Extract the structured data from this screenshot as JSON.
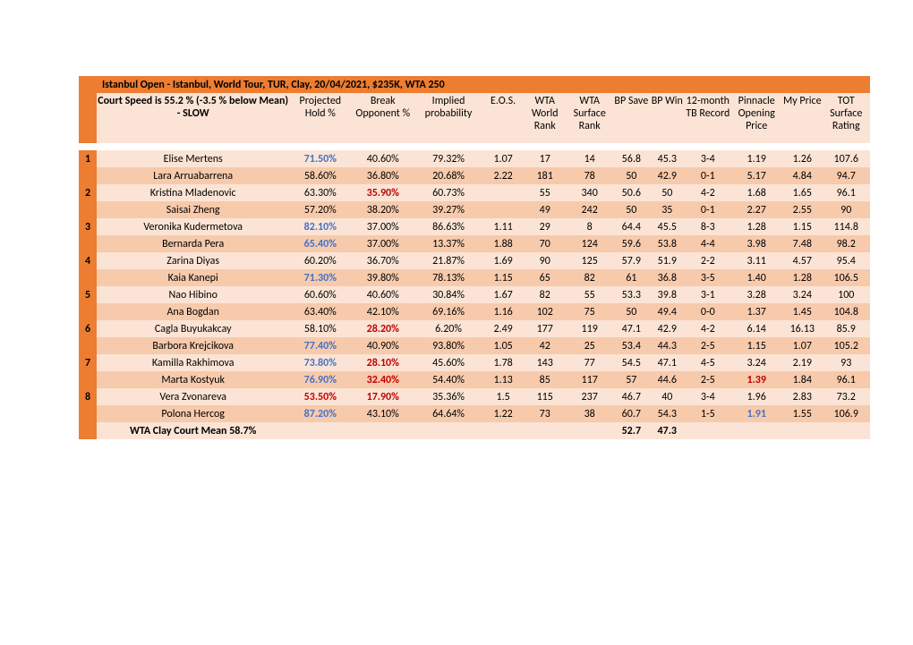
{
  "title": "Istanbul Open - Istanbul, World Tour, TUR, Clay, 20/04/2021, $235K, WTA 250",
  "header": {
    "name": "Court Speed is 55.2 % (-3.5 % below Mean) - SLOW",
    "hold": "Projected Hold %",
    "break": "Break Opponent %",
    "implied": "Implied probability",
    "eos": "E.O.S.",
    "world": "WTA World Rank",
    "surface": "WTA Surface Rank",
    "bpsave": "BP Save",
    "bpwin": "BP Win",
    "tb": "12-month TB Record",
    "pop": "Pinnacle Opening Price",
    "my": "My Price",
    "tot": "TOT Surface Rating"
  },
  "colors": {
    "dark": "#ed7d31",
    "light1": "#fbe4d5",
    "light2": "#f7caac",
    "blue": "#4472c4",
    "red": "#c00000"
  },
  "rows": [
    {
      "num": "1",
      "name": "Elise Mertens",
      "hold": "71.50%",
      "hold_c": "blue",
      "brk": "40.60%",
      "brk_c": "",
      "imp": "79.32%",
      "eos": "1.07",
      "wr": "17",
      "sr": "14",
      "bps": "56.8",
      "bpw": "45.3",
      "tb": "3-4",
      "pop": "1.19",
      "pop_c": "",
      "my": "1.26",
      "tot": "107.6",
      "shade": "a"
    },
    {
      "num": "",
      "name": "Lara Arruabarrena",
      "hold": "58.60%",
      "hold_c": "",
      "brk": "36.80%",
      "brk_c": "",
      "imp": "20.68%",
      "eos": "2.22",
      "wr": "181",
      "sr": "78",
      "bps": "50",
      "bpw": "42.9",
      "tb": "0-1",
      "pop": "5.17",
      "pop_c": "",
      "my": "4.84",
      "tot": "94.7",
      "shade": "b"
    },
    {
      "num": "2",
      "name": "Kristina Mladenovic",
      "hold": "63.30%",
      "hold_c": "",
      "brk": "35.90%",
      "brk_c": "red",
      "imp": "60.73%",
      "eos": "",
      "wr": "55",
      "sr": "340",
      "bps": "50.6",
      "bpw": "50",
      "tb": "4-2",
      "pop": "1.68",
      "pop_c": "",
      "my": "1.65",
      "tot": "96.1",
      "shade": "a"
    },
    {
      "num": "",
      "name": "Saisai Zheng",
      "hold": "57.20%",
      "hold_c": "",
      "brk": "38.20%",
      "brk_c": "",
      "imp": "39.27%",
      "eos": "",
      "wr": "49",
      "sr": "242",
      "bps": "50",
      "bpw": "35",
      "tb": "0-1",
      "pop": "2.27",
      "pop_c": "",
      "my": "2.55",
      "tot": "90",
      "shade": "b"
    },
    {
      "num": "3",
      "name": "Veronika Kudermetova",
      "hold": "82.10%",
      "hold_c": "blue",
      "brk": "37.00%",
      "brk_c": "",
      "imp": "86.63%",
      "eos": "1.11",
      "wr": "29",
      "sr": "8",
      "bps": "64.4",
      "bpw": "45.5",
      "tb": "8-3",
      "pop": "1.28",
      "pop_c": "",
      "my": "1.15",
      "tot": "114.8",
      "shade": "a"
    },
    {
      "num": "",
      "name": "Bernarda Pera",
      "hold": "65.40%",
      "hold_c": "blue",
      "brk": "37.00%",
      "brk_c": "",
      "imp": "13.37%",
      "eos": "1.88",
      "wr": "70",
      "sr": "124",
      "bps": "59.6",
      "bpw": "53.8",
      "tb": "4-4",
      "pop": "3.98",
      "pop_c": "",
      "my": "7.48",
      "tot": "98.2",
      "shade": "b"
    },
    {
      "num": "4",
      "name": "Zarina Diyas",
      "hold": "60.20%",
      "hold_c": "",
      "brk": "36.70%",
      "brk_c": "",
      "imp": "21.87%",
      "eos": "1.69",
      "wr": "90",
      "sr": "125",
      "bps": "57.9",
      "bpw": "51.9",
      "tb": "2-2",
      "pop": "3.11",
      "pop_c": "",
      "my": "4.57",
      "tot": "95.4",
      "shade": "a"
    },
    {
      "num": "",
      "name": "Kaia Kanepi",
      "hold": "71.30%",
      "hold_c": "blue",
      "brk": "39.80%",
      "brk_c": "",
      "imp": "78.13%",
      "eos": "1.15",
      "wr": "65",
      "sr": "82",
      "bps": "61",
      "bpw": "36.8",
      "tb": "3-5",
      "pop": "1.40",
      "pop_c": "",
      "my": "1.28",
      "tot": "106.5",
      "shade": "b"
    },
    {
      "num": "5",
      "name": "Nao Hibino",
      "hold": "60.60%",
      "hold_c": "",
      "brk": "40.60%",
      "brk_c": "",
      "imp": "30.84%",
      "eos": "1.67",
      "wr": "82",
      "sr": "55",
      "bps": "53.3",
      "bpw": "39.8",
      "tb": "3-1",
      "pop": "3.28",
      "pop_c": "",
      "my": "3.24",
      "tot": "100",
      "shade": "a"
    },
    {
      "num": "",
      "name": "Ana Bogdan",
      "hold": "63.40%",
      "hold_c": "",
      "brk": "42.10%",
      "brk_c": "",
      "imp": "69.16%",
      "eos": "1.16",
      "wr": "102",
      "sr": "75",
      "bps": "50",
      "bpw": "49.4",
      "tb": "0-0",
      "pop": "1.37",
      "pop_c": "",
      "my": "1.45",
      "tot": "104.8",
      "shade": "b"
    },
    {
      "num": "6",
      "name": "Cagla Buyukakcay",
      "hold": "58.10%",
      "hold_c": "",
      "brk": "28.20%",
      "brk_c": "red",
      "imp": "6.20%",
      "eos": "2.49",
      "wr": "177",
      "sr": "119",
      "bps": "47.1",
      "bpw": "42.9",
      "tb": "4-2",
      "pop": "6.14",
      "pop_c": "",
      "my": "16.13",
      "tot": "85.9",
      "shade": "a"
    },
    {
      "num": "",
      "name": "Barbora Krejcikova",
      "hold": "77.40%",
      "hold_c": "blue",
      "brk": "40.90%",
      "brk_c": "",
      "imp": "93.80%",
      "eos": "1.05",
      "wr": "42",
      "sr": "25",
      "bps": "53.4",
      "bpw": "44.3",
      "tb": "2-5",
      "pop": "1.15",
      "pop_c": "",
      "my": "1.07",
      "tot": "105.2",
      "shade": "b"
    },
    {
      "num": "7",
      "name": "Kamilla Rakhimova",
      "hold": "73.80%",
      "hold_c": "blue",
      "brk": "28.10%",
      "brk_c": "red",
      "imp": "45.60%",
      "eos": "1.78",
      "wr": "143",
      "sr": "77",
      "bps": "54.5",
      "bpw": "47.1",
      "tb": "4-5",
      "pop": "3.24",
      "pop_c": "",
      "my": "2.19",
      "tot": "93",
      "shade": "a"
    },
    {
      "num": "",
      "name": "Marta Kostyuk",
      "hold": "76.90%",
      "hold_c": "blue",
      "brk": "32.40%",
      "brk_c": "red",
      "imp": "54.40%",
      "eos": "1.13",
      "wr": "85",
      "sr": "117",
      "bps": "57",
      "bpw": "44.6",
      "tb": "2-5",
      "pop": "1.39",
      "pop_c": "red",
      "my": "1.84",
      "tot": "96.1",
      "shade": "b"
    },
    {
      "num": "8",
      "name": "Vera Zvonareva",
      "hold": "53.50%",
      "hold_c": "red",
      "brk": "17.90%",
      "brk_c": "red",
      "imp": "35.36%",
      "eos": "1.5",
      "wr": "115",
      "sr": "237",
      "bps": "46.7",
      "bpw": "40",
      "tb": "3-4",
      "pop": "1.96",
      "pop_c": "",
      "my": "2.83",
      "tot": "73.2",
      "shade": "a"
    },
    {
      "num": "",
      "name": "Polona Hercog",
      "hold": "87.20%",
      "hold_c": "blue",
      "brk": "43.10%",
      "brk_c": "",
      "imp": "64.64%",
      "eos": "1.22",
      "wr": "73",
      "sr": "38",
      "bps": "60.7",
      "bpw": "54.3",
      "tb": "1-5",
      "pop": "1.91",
      "pop_c": "blue",
      "my": "1.55",
      "tot": "106.9",
      "shade": "b"
    }
  ],
  "footer": {
    "name": "WTA Clay Court Mean 58.7%",
    "bps": "52.7",
    "bpw": "47.3"
  }
}
